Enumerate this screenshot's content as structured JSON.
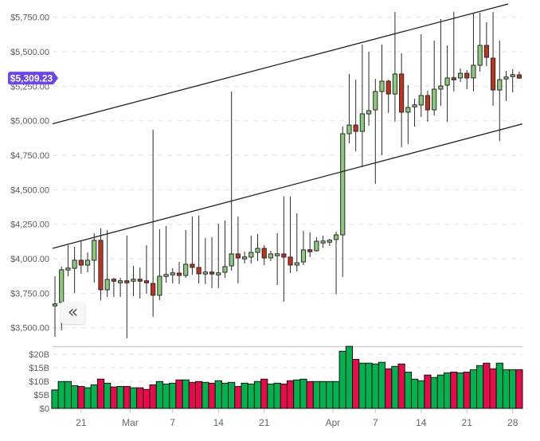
{
  "price_badge": {
    "label": "$5,309.23",
    "value": 5309.23,
    "color": "#6b46f0"
  },
  "controls": {
    "scroll_back_glyph": "«"
  },
  "colors": {
    "candle_up": "#8cc97a",
    "candle_down": "#c0321b",
    "candle_outline": "#2b2b2b",
    "volume_up": "#00b34f",
    "volume_down": "#ea0a4c",
    "grid": "#e2e2e6",
    "trendline": "#222222"
  },
  "chart_data": {
    "type": "candlestick",
    "title": "",
    "grid": true,
    "legend": null,
    "y_axis": {
      "ylim": [
        3450,
        5850
      ],
      "ticks": [
        {
          "value": 5750,
          "label": "$5,750.00"
        },
        {
          "value": 5500,
          "label": "$5,500.00"
        },
        {
          "value": 5250,
          "label": "$5,250.00"
        },
        {
          "value": 5000,
          "label": "$5,000.00"
        },
        {
          "value": 4750,
          "label": "$4,750.00"
        },
        {
          "value": 4500,
          "label": "$4,500.00"
        },
        {
          "value": 4250,
          "label": "$4,250.00"
        },
        {
          "value": 4000,
          "label": "$4,000.00"
        },
        {
          "value": 3750,
          "label": "$3,750.00"
        },
        {
          "value": 3500,
          "label": "$3,500.00"
        }
      ]
    },
    "volume_axis": {
      "unit": "$B",
      "ticks": [
        {
          "value": 20,
          "label": "$20B"
        },
        {
          "value": 15,
          "label": "$15B"
        },
        {
          "value": 10,
          "label": "$10B"
        },
        {
          "value": 5,
          "label": "$5B"
        },
        {
          "value": 0,
          "label": "$0"
        }
      ]
    },
    "x_axis": {
      "ticks": [
        {
          "index": 4,
          "label": "21"
        },
        {
          "index": 11.5,
          "label": "Mar"
        },
        {
          "index": 18,
          "label": "7"
        },
        {
          "index": 25,
          "label": "14"
        },
        {
          "index": 32,
          "label": "21"
        },
        {
          "index": 42.5,
          "label": "Apr"
        },
        {
          "index": 49,
          "label": "7"
        },
        {
          "index": 56,
          "label": "14"
        },
        {
          "index": 63,
          "label": "21"
        },
        {
          "index": 70,
          "label": "28"
        }
      ]
    },
    "ohlc_columns": [
      "date",
      "open",
      "high",
      "low",
      "close"
    ],
    "candles": [
      [
        "Feb 17",
        3660,
        3873,
        3435,
        3671
      ],
      [
        "Feb 18",
        3683,
        3943,
        3481,
        3920
      ],
      [
        "Feb 19",
        3920,
        4098,
        3873,
        3931
      ],
      [
        "Feb 20",
        3931,
        4087,
        3752,
        3989
      ],
      [
        "Feb 21",
        3989,
        4127,
        3891,
        3954
      ],
      [
        "Feb 22",
        3954,
        4046,
        3902,
        3989
      ],
      [
        "Feb 23",
        3989,
        4185,
        3827,
        4133
      ],
      [
        "Feb 24",
        4133,
        4220,
        3700,
        3775
      ],
      [
        "Feb 25",
        3775,
        4208,
        3723,
        3850
      ],
      [
        "Feb 26",
        3850,
        3862,
        3723,
        3839
      ],
      [
        "Feb 27",
        3827,
        3862,
        3723,
        3839
      ],
      [
        "Feb 28",
        3839,
        4168,
        3423,
        3827
      ],
      [
        "Mar 1",
        3839,
        3948,
        3729,
        3850
      ],
      [
        "Mar 2",
        3850,
        3937,
        3712,
        3839
      ],
      [
        "Mar 3",
        3839,
        4098,
        3746,
        3827
      ],
      [
        "Mar 4",
        3821,
        4935,
        3579,
        3735
      ],
      [
        "Mar 5",
        3735,
        4214,
        3700,
        3873
      ],
      [
        "Mar 6",
        3873,
        4237,
        3827,
        3885
      ],
      [
        "Mar 7",
        3885,
        3931,
        3821,
        3896
      ],
      [
        "Mar 8",
        3896,
        3977,
        3816,
        3879
      ],
      [
        "Mar 9",
        3879,
        4208,
        3862,
        3960
      ],
      [
        "Mar 10",
        3960,
        4306,
        3885,
        3937
      ],
      [
        "Mar 11",
        3937,
        4312,
        3821,
        3891
      ],
      [
        "Mar 12",
        3891,
        4150,
        3816,
        3902
      ],
      [
        "Mar 13",
        3902,
        4156,
        3787,
        3891
      ],
      [
        "Mar 14",
        3885,
        4254,
        3787,
        3896
      ],
      [
        "Mar 15",
        3902,
        4277,
        3862,
        3943
      ],
      [
        "Mar 16",
        3948,
        5212,
        3914,
        4035
      ],
      [
        "Mar 17",
        4035,
        4306,
        3821,
        4006
      ],
      [
        "Mar 18",
        4000,
        4052,
        3966,
        4012
      ],
      [
        "Mar 19",
        4012,
        4168,
        3966,
        4046
      ],
      [
        "Mar 20",
        4046,
        4179,
        3983,
        4075
      ],
      [
        "Mar 21",
        4075,
        4098,
        3954,
        4006
      ],
      [
        "Mar 22",
        4006,
        4058,
        3983,
        4035
      ],
      [
        "Mar 23",
        4023,
        4185,
        3810,
        4035
      ],
      [
        "Mar 24",
        4035,
        4451,
        3689,
        4012
      ],
      [
        "Mar 25",
        4012,
        4451,
        3896,
        3954
      ],
      [
        "Mar 26",
        3954,
        4329,
        3908,
        3971
      ],
      [
        "Mar 27",
        3977,
        4202,
        3954,
        4064
      ],
      [
        "Mar 28",
        4064,
        4191,
        4012,
        4052
      ],
      [
        "Mar 29",
        4058,
        4156,
        4052,
        4127
      ],
      [
        "Mar 30",
        4116,
        4168,
        4081,
        4127
      ],
      [
        "Mar 31",
        4121,
        4144,
        4093,
        4133
      ],
      [
        "Apr 1",
        4139,
        4196,
        3741,
        4173
      ],
      [
        "Apr 2",
        4173,
        4958,
        3868,
        4906
      ],
      [
        "Apr 3",
        4906,
        5339,
        4837,
        4969
      ],
      [
        "Apr 4",
        4969,
        5298,
        4779,
        4923
      ],
      [
        "Apr 5",
        4923,
        5552,
        4664,
        5050
      ],
      [
        "Apr 6",
        5050,
        5500,
        4964,
        5073
      ],
      [
        "Apr 7",
        5079,
        5304,
        4543,
        5212
      ],
      [
        "Apr 8",
        5212,
        5552,
        4750,
        5287
      ],
      [
        "Apr 9",
        5287,
        5298,
        5056,
        5194
      ],
      [
        "Apr 10",
        5194,
        5789,
        4993,
        5339
      ],
      [
        "Apr 11",
        5339,
        5489,
        4808,
        5062
      ],
      [
        "Apr 12",
        5062,
        5258,
        4831,
        5096
      ],
      [
        "Apr 13",
        5102,
        5160,
        4958,
        5114
      ],
      [
        "Apr 14",
        5114,
        5627,
        5027,
        5183
      ],
      [
        "Apr 15",
        5183,
        5218,
        4993,
        5079
      ],
      [
        "Apr 16",
        5079,
        5581,
        5039,
        5229
      ],
      [
        "Apr 17",
        5229,
        5737,
        5108,
        5252
      ],
      [
        "Apr 18",
        5258,
        5546,
        4993,
        5310
      ],
      [
        "Apr 19",
        5310,
        5789,
        5212,
        5298
      ],
      [
        "Apr 20",
        5310,
        5379,
        5281,
        5344
      ],
      [
        "Apr 21",
        5344,
        5368,
        5229,
        5310
      ],
      [
        "Apr 22",
        5310,
        5783,
        5212,
        5402
      ],
      [
        "Apr 23",
        5402,
        5783,
        5356,
        5546
      ],
      [
        "Apr 24",
        5546,
        5714,
        5396,
        5460
      ],
      [
        "Apr 25",
        5454,
        5789,
        5108,
        5223
      ],
      [
        "Apr 26",
        5223,
        5581,
        4854,
        5298
      ],
      [
        "Apr 27",
        5304,
        5362,
        5143,
        5316
      ],
      [
        "Apr 28",
        5321,
        5373,
        5206,
        5333
      ],
      [
        "Apr 29",
        5333,
        5356,
        5304,
        5309.23
      ]
    ],
    "volume_billions": [
      6.8,
      9.9,
      9.9,
      8.4,
      8.1,
      7.6,
      8.7,
      10.8,
      9.3,
      7.9,
      8.1,
      8.1,
      7.6,
      7.6,
      7.0,
      8.7,
      9.9,
      9.0,
      9.3,
      10.5,
      10.5,
      9.6,
      9.9,
      9.6,
      9.3,
      10.2,
      9.3,
      9.6,
      8.1,
      9.3,
      9.0,
      9.9,
      10.8,
      9.0,
      9.3,
      9.0,
      10.2,
      10.5,
      10.8,
      9.9,
      9.9,
      9.9,
      9.9,
      9.9,
      21.1,
      22.9,
      18.1,
      16.7,
      16.7,
      16.4,
      17.0,
      14.6,
      15.5,
      16.4,
      13.4,
      10.8,
      10.2,
      12.3,
      11.4,
      12.3,
      13.1,
      13.4,
      13.1,
      13.4,
      14.3,
      15.8,
      16.7,
      14.6,
      16.7,
      14.3,
      14.3,
      14.3
    ],
    "trendlines": [
      {
        "name": "upper-channel",
        "start": {
          "index": -0.37,
          "price": 4978
        },
        "end": {
          "index": 69.3,
          "price": 5846
        }
      },
      {
        "name": "lower-channel",
        "start": {
          "index": -0.37,
          "price": 4075
        },
        "end": {
          "index": 71.46,
          "price": 4977
        }
      }
    ]
  }
}
